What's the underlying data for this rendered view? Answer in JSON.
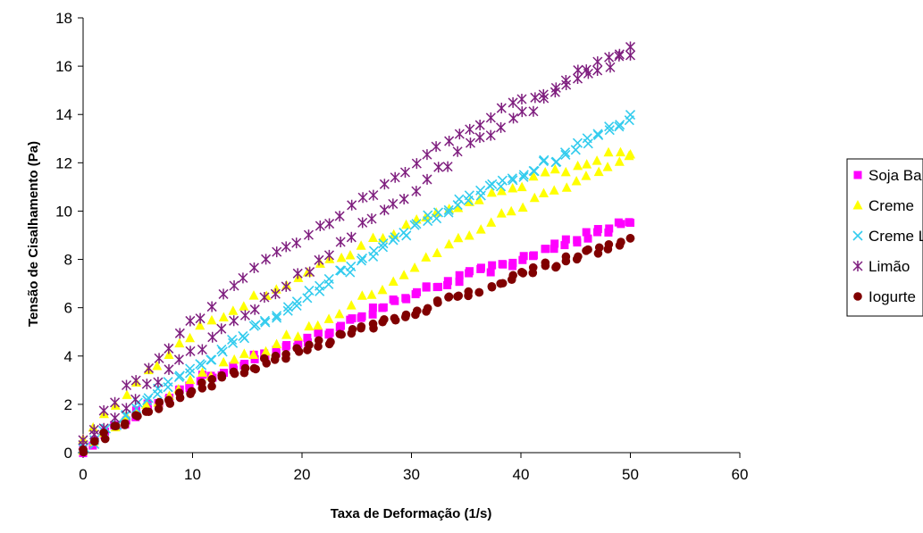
{
  "chart_data": {
    "type": "scatter",
    "title": "",
    "xlabel": "Taxa de Deformação (1/s)",
    "ylabel": "Tensão de Cisalhamento (Pa)",
    "xlim": [
      0,
      60
    ],
    "ylim": [
      0,
      18
    ],
    "x_ticks": [
      0,
      10,
      20,
      30,
      40,
      50,
      60
    ],
    "y_ticks": [
      0,
      2,
      4,
      6,
      8,
      10,
      12,
      14,
      16,
      18
    ],
    "grid": false,
    "legend_position": "right",
    "series": [
      {
        "name": "Soja Banana",
        "marker": "square",
        "color": "#ff00ff",
        "points": [
          [
            0,
            0.1
          ],
          [
            5,
            1.7
          ],
          [
            10,
            2.9
          ],
          [
            15,
            3.8
          ],
          [
            20,
            4.5
          ],
          [
            25,
            5.6
          ],
          [
            30,
            6.5
          ],
          [
            35,
            7.3
          ],
          [
            40,
            8.0
          ],
          [
            45,
            8.8
          ],
          [
            50,
            9.6
          ]
        ]
      },
      {
        "name": "Creme",
        "marker": "triangle",
        "color": "#ffff00",
        "up_points": [
          [
            0,
            0.5
          ],
          [
            5,
            3.0
          ],
          [
            10,
            5.0
          ],
          [
            15,
            6.3
          ],
          [
            20,
            7.3
          ],
          [
            25,
            8.4
          ],
          [
            30,
            9.5
          ],
          [
            35,
            10.3
          ],
          [
            40,
            11.1
          ],
          [
            45,
            11.9
          ],
          [
            50,
            12.5
          ]
        ],
        "down_points": [
          [
            0,
            0.2
          ],
          [
            5,
            1.8
          ],
          [
            10,
            3.0
          ],
          [
            15,
            4.0
          ],
          [
            20,
            5.0
          ],
          [
            25,
            6.2
          ],
          [
            30,
            7.6
          ],
          [
            35,
            9.0
          ],
          [
            40,
            10.2
          ],
          [
            45,
            11.3
          ],
          [
            50,
            12.2
          ]
        ]
      },
      {
        "name": "Creme Light",
        "marker": "x",
        "color": "#33ccee",
        "points": [
          [
            0,
            0.1
          ],
          [
            5,
            2.0
          ],
          [
            10,
            3.5
          ],
          [
            15,
            4.9
          ],
          [
            20,
            6.4
          ],
          [
            25,
            7.8
          ],
          [
            30,
            9.3
          ],
          [
            35,
            10.5
          ],
          [
            40,
            11.5
          ],
          [
            45,
            12.6
          ],
          [
            50,
            13.9
          ]
        ]
      },
      {
        "name": "Limão",
        "marker": "star",
        "color": "#7f1f7f",
        "up_points": [
          [
            0,
            0.6
          ],
          [
            5,
            3.2
          ],
          [
            10,
            5.4
          ],
          [
            15,
            7.3
          ],
          [
            20,
            8.9
          ],
          [
            25,
            10.3
          ],
          [
            30,
            11.9
          ],
          [
            35,
            13.4
          ],
          [
            40,
            14.5
          ],
          [
            45,
            15.7
          ],
          [
            50,
            16.8
          ]
        ],
        "down_points": [
          [
            0,
            0.3
          ],
          [
            5,
            2.4
          ],
          [
            10,
            4.1
          ],
          [
            15,
            5.8
          ],
          [
            20,
            7.4
          ],
          [
            25,
            9.2
          ],
          [
            30,
            10.8
          ],
          [
            35,
            12.6
          ],
          [
            40,
            14.0
          ],
          [
            45,
            15.3
          ],
          [
            50,
            16.6
          ]
        ]
      },
      {
        "name": "Iogurte",
        "marker": "circle",
        "color": "#800000",
        "points": [
          [
            0,
            0.1
          ],
          [
            5,
            1.6
          ],
          [
            10,
            2.6
          ],
          [
            15,
            3.5
          ],
          [
            20,
            4.3
          ],
          [
            25,
            5.0
          ],
          [
            30,
            5.8
          ],
          [
            35,
            6.6
          ],
          [
            40,
            7.4
          ],
          [
            45,
            8.1
          ],
          [
            50,
            8.8
          ]
        ]
      }
    ]
  }
}
